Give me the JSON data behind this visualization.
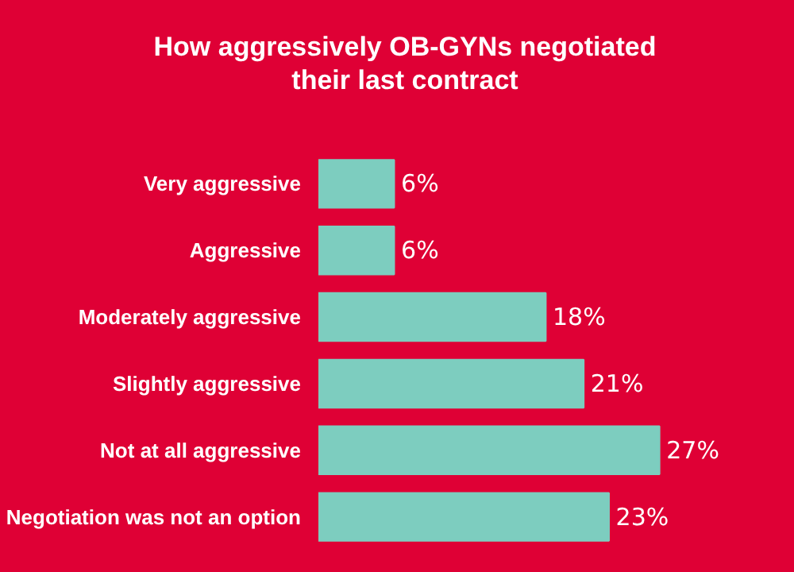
{
  "chart_data": {
    "type": "bar",
    "orientation": "horizontal",
    "title": "How aggressively OB-GYNs negotiated their last contract",
    "categories": [
      "Very aggressive",
      "Aggressive",
      "Moderately aggressive",
      "Slightly aggressive",
      "Not at all aggressive",
      "Negotiation was not an option"
    ],
    "values": [
      6,
      6,
      18,
      21,
      27,
      23
    ],
    "color": "#7dcdbf",
    "data_labels": true,
    "value_labels": [
      "6%",
      "6%",
      "18%",
      "21%",
      "27%",
      "23%"
    ],
    "grid": false
  }
}
